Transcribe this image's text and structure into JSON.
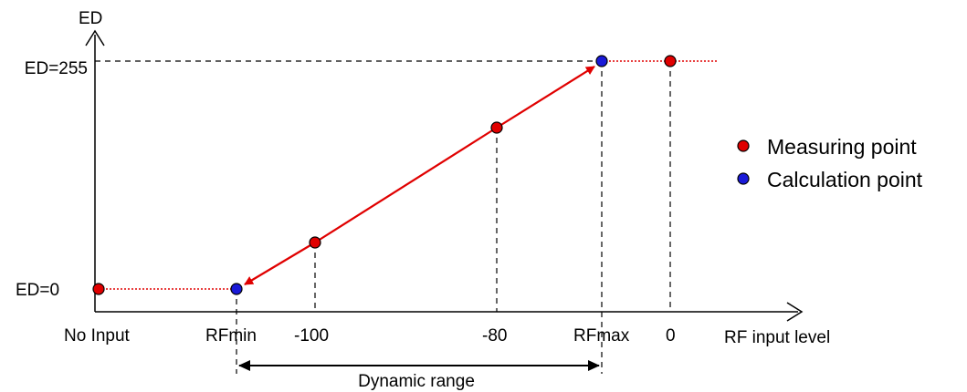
{
  "diagram": {
    "y_axis_label": "ED",
    "x_axis_label": "RF input level",
    "y_ticks": {
      "top": "ED=255",
      "bottom": "ED=0"
    },
    "x_ticks": {
      "no_input": "No Input",
      "rfmin": "RFmin",
      "m100": "-100",
      "m80": "-80",
      "rfmax": "RFmax",
      "zero": "0"
    },
    "dynamic_range_label": "Dynamic range",
    "legend": {
      "measuring": "Measuring point",
      "calculation": "Calculation point"
    },
    "colors": {
      "measuring": "#e00000",
      "calculation": "#1a1ad8",
      "line": "#e00000",
      "axis": "#000000"
    }
  }
}
